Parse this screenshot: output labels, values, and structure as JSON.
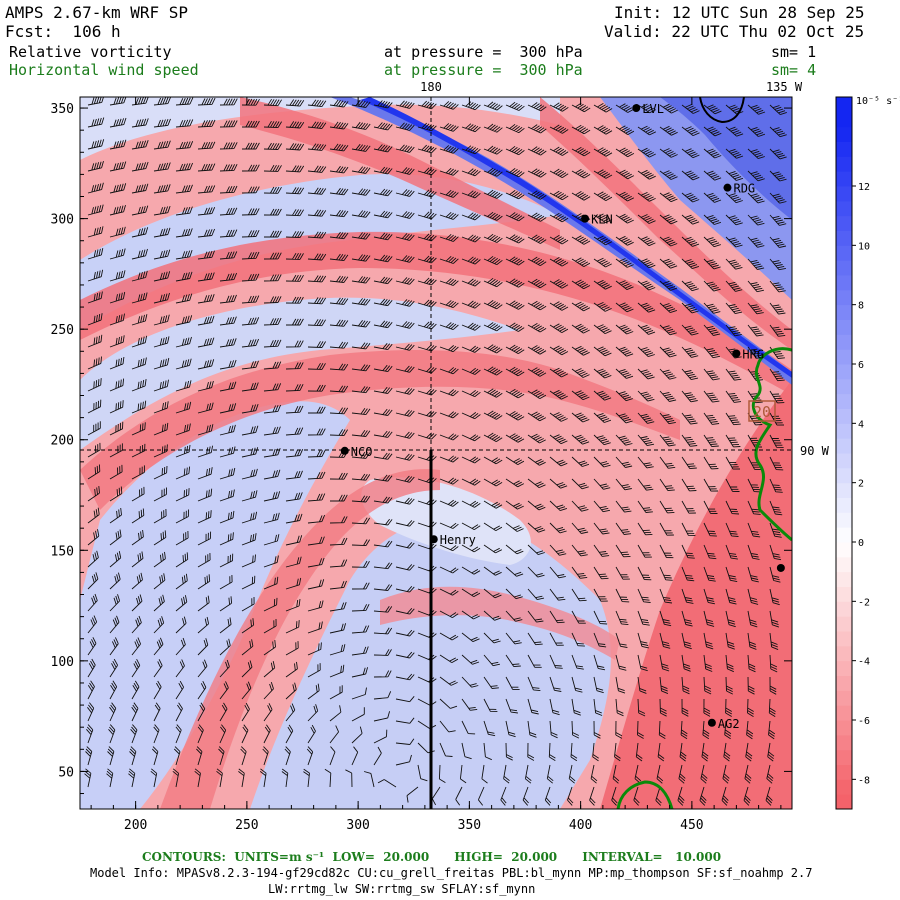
{
  "header": {
    "model": "AMPS 2.67-km WRF SP",
    "forecast": "Fcst:  106 h",
    "init": "Init: 12 UTC Sun 28 Sep 25",
    "valid": "Valid: 22 UTC Thu 02 Oct 25",
    "field1_name": "Relative vorticity",
    "field1_pressure": "at pressure =  300 hPa",
    "field1_sm": "sm= 1",
    "field2_name": "Horizontal wind speed",
    "field2_pressure": "at pressure =  300 hPa",
    "field2_sm": "sm= 4"
  },
  "map": {
    "lon_label_top": "180",
    "lon_label_right": "135 W",
    "lon_label_side": "90 W",
    "contour_box_label": "20",
    "stations": [
      {
        "name": "LVL",
        "x": 425,
        "y": 350
      },
      {
        "name": "RDG",
        "x": 466,
        "y": 314
      },
      {
        "name": "KLN",
        "x": 402,
        "y": 300
      },
      {
        "name": "HRG",
        "x": 470,
        "y": 239
      },
      {
        "name": "NCO",
        "x": 294,
        "y": 195
      },
      {
        "name": "Henry",
        "x": 334,
        "y": 155
      },
      {
        "name": "",
        "x": 490,
        "y": 142
      },
      {
        "name": "AG2",
        "x": 459,
        "y": 72
      }
    ]
  },
  "chart_data": {
    "type": "heatmap",
    "title": "Relative vorticity / Horizontal wind speed at 300 hPa",
    "x_ticks": [
      200,
      250,
      300,
      350,
      400,
      450
    ],
    "y_ticks": [
      50,
      100,
      150,
      200,
      250,
      300,
      350
    ],
    "xlim": [
      175,
      495
    ],
    "ylim": [
      33,
      355
    ],
    "colorbar": {
      "unit": "10^-5 s^-1",
      "unit_label": "10⁻⁵ s⁻¹",
      "ticks": [
        12,
        10,
        8,
        6,
        4,
        2,
        0,
        -2,
        -4,
        -6,
        -8
      ],
      "range": [
        -9,
        15
      ],
      "colors": {
        "neg_max": "#f4626a",
        "neutral": "#ffffff",
        "pos_max": "#1426f2"
      }
    },
    "contours": {
      "units": "m s^-1",
      "low": 20.0,
      "high": 20.0,
      "interval": 10.0
    }
  },
  "footer": {
    "contours_label": "CONTOURS:  UNITS=m s⁻¹  LOW=  20.000      HIGH=  20.000      INTERVAL=   10.000",
    "model_info_1": "Model Info: MPASv8.2.3-194-gf29cd82c CU:cu_grell_freitas PBL:bl_mynn MP:mp_thompson SF:sf_noahmp 2.7",
    "model_info_2": "LW:rrtmg_lw SW:rrtmg_sw SFLAY:sf_mynn"
  }
}
